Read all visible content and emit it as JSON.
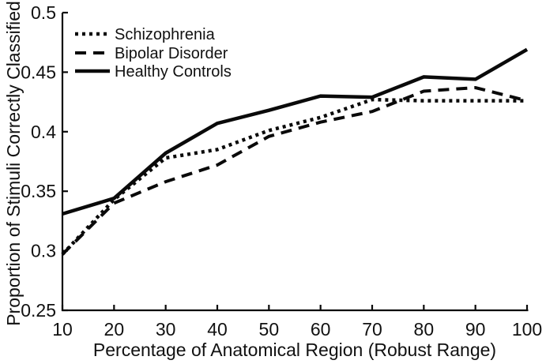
{
  "chart_data": {
    "type": "line",
    "title": "",
    "xlabel": "Percentage of Anatomical Region (Robust Range)",
    "ylabel": "Proportion of Stimuli Correctly Classified",
    "x": [
      10,
      20,
      30,
      40,
      50,
      60,
      70,
      80,
      90,
      100
    ],
    "xtick_labels": [
      "10",
      "20",
      "30",
      "40",
      "50",
      "60",
      "70",
      "80",
      "90",
      "100"
    ],
    "xlim": [
      10,
      100
    ],
    "yticks": [
      0.25,
      0.3,
      0.35,
      0.4,
      0.45,
      0.5
    ],
    "ytick_labels": [
      "0.25",
      "0.3",
      "0.35",
      "0.4",
      "0.45",
      "0.5"
    ],
    "ylim": [
      0.25,
      0.5
    ],
    "grid": false,
    "legend_position": "top-left",
    "legend_border": false,
    "series": [
      {
        "name": "Schizophrenia",
        "style": "dotted",
        "values": [
          0.297,
          0.343,
          0.378,
          0.385,
          0.401,
          0.412,
          0.427,
          0.426,
          0.426,
          0.426
        ]
      },
      {
        "name": "Bipolar Disorder",
        "style": "dashed",
        "values": [
          0.297,
          0.34,
          0.358,
          0.372,
          0.396,
          0.408,
          0.417,
          0.434,
          0.437,
          0.426
        ]
      },
      {
        "name": "Healthy Controls",
        "style": "solid",
        "values": [
          0.331,
          0.344,
          0.382,
          0.407,
          0.418,
          0.43,
          0.429,
          0.446,
          0.444,
          0.469
        ]
      }
    ],
    "colors": {
      "line": "#0a0a0a",
      "background": "#ffffff",
      "text": "#111111"
    }
  }
}
